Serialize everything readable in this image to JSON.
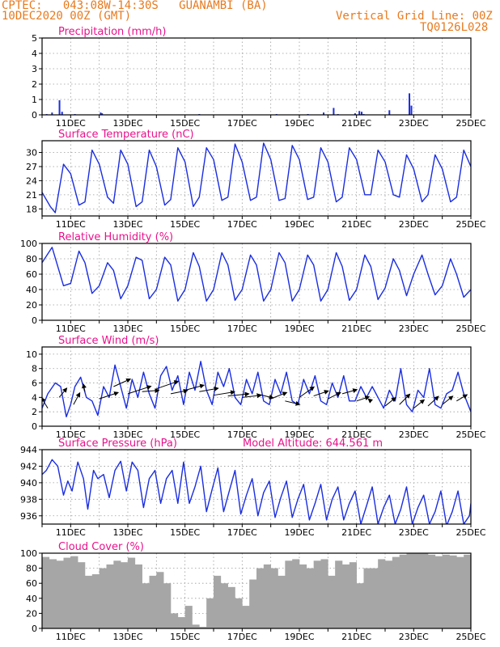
{
  "header": {
    "line1": "CPTEC:   043:08W-14:30S   GUANAMBI (BA)",
    "line2": "10DEC2020 00Z (GMT)",
    "grid_note": "Vertical Grid Line: 00Z",
    "code": "TQ0126L028"
  },
  "colors": {
    "header": "#e87a1e",
    "title": "#e8128c",
    "series": "#1a2de0",
    "cloud": "#a6a6a6",
    "axis": "#000000",
    "grid": "#9a9a9a"
  },
  "chart_data": [
    {
      "type": "bar",
      "title": "Precipitation (mm/h)",
      "x_ticks": [
        "11DEC",
        "13DEC",
        "15DEC",
        "17DEC",
        "19DEC",
        "21DEC",
        "23DEC",
        "25DEC"
      ],
      "xlim_days": [
        10,
        25
      ],
      "ylim": [
        0,
        5
      ],
      "yticks": [
        0,
        1,
        2,
        3,
        4,
        5
      ],
      "grid": true,
      "x": [
        10.16,
        10.35,
        10.61,
        10.7,
        11.15,
        12.05,
        12.1,
        15.5,
        18.2,
        19.3,
        19.85,
        20.2,
        20.35,
        20.95,
        21.1,
        21.18,
        21.25,
        22.15,
        22.85,
        22.92
      ],
      "values": [
        0.05,
        0.15,
        0.95,
        0.2,
        0.05,
        0.15,
        0.1,
        0.05,
        0.05,
        0.05,
        0.15,
        0.45,
        0.05,
        0.1,
        0.25,
        0.2,
        0.05,
        0.3,
        1.4,
        0.6
      ]
    },
    {
      "type": "line",
      "title": "Surface Temperature (nC)",
      "x_ticks": [
        "11DEC",
        "13DEC",
        "15DEC",
        "17DEC",
        "19DEC",
        "21DEC",
        "23DEC",
        "25DEC"
      ],
      "xlim_days": [
        10,
        25
      ],
      "ylim": [
        16.5,
        32.5
      ],
      "yticks": [
        18,
        21,
        24,
        27,
        30
      ],
      "grid": true,
      "x": [
        10.0,
        10.29,
        10.46,
        10.75,
        11.0,
        11.29,
        11.5,
        11.75,
        12.0,
        12.29,
        12.5,
        12.75,
        13.0,
        13.29,
        13.5,
        13.75,
        14.0,
        14.29,
        14.5,
        14.75,
        15.0,
        15.29,
        15.5,
        15.75,
        16.0,
        16.29,
        16.5,
        16.75,
        17.0,
        17.29,
        17.5,
        17.75,
        18.0,
        18.29,
        18.5,
        18.75,
        19.0,
        19.29,
        19.5,
        19.75,
        20.0,
        20.29,
        20.5,
        20.75,
        21.0,
        21.29,
        21.5,
        21.75,
        22.0,
        22.29,
        22.5,
        22.75,
        23.0,
        23.29,
        23.5,
        23.75,
        24.0,
        24.29,
        24.5,
        24.75,
        25.0
      ],
      "values": [
        21.5,
        18.5,
        17.2,
        27.5,
        25.5,
        18.8,
        19.5,
        30.5,
        27.5,
        20.5,
        19.2,
        30.5,
        27.5,
        18.5,
        19.5,
        30.5,
        27.0,
        18.8,
        20.0,
        31.0,
        28.0,
        18.5,
        20.5,
        31.0,
        28.5,
        19.8,
        20.5,
        31.8,
        28.0,
        19.8,
        20.5,
        32.0,
        28.5,
        19.8,
        20.2,
        31.5,
        28.5,
        20.0,
        20.5,
        31.0,
        28.0,
        19.5,
        20.5,
        31.0,
        28.5,
        21.0,
        21.0,
        30.5,
        28.0,
        21.0,
        20.5,
        29.5,
        26.5,
        19.5,
        21.0,
        29.5,
        26.5,
        19.5,
        20.5,
        30.5,
        27.0
      ]
    },
    {
      "type": "line",
      "title": "Relative Humidity (%)",
      "x_ticks": [
        "11DEC",
        "13DEC",
        "15DEC",
        "17DEC",
        "19DEC",
        "21DEC",
        "23DEC",
        "25DEC"
      ],
      "xlim_days": [
        10,
        25
      ],
      "ylim": [
        0,
        100
      ],
      "yticks": [
        0,
        20,
        40,
        60,
        80,
        100
      ],
      "grid": true,
      "x": [
        10.0,
        10.35,
        10.75,
        11.0,
        11.29,
        11.5,
        11.75,
        12.0,
        12.29,
        12.5,
        12.75,
        13.0,
        13.29,
        13.5,
        13.75,
        14.0,
        14.29,
        14.5,
        14.75,
        15.0,
        15.29,
        15.5,
        15.75,
        16.0,
        16.29,
        16.5,
        16.75,
        17.0,
        17.29,
        17.5,
        17.75,
        18.0,
        18.29,
        18.5,
        18.75,
        19.0,
        19.29,
        19.5,
        19.75,
        20.0,
        20.29,
        20.5,
        20.75,
        21.0,
        21.29,
        21.5,
        21.75,
        22.0,
        22.29,
        22.5,
        22.75,
        23.0,
        23.29,
        23.5,
        23.75,
        24.0,
        24.29,
        24.5,
        24.75,
        25.0
      ],
      "values": [
        75,
        95,
        45,
        48,
        90,
        75,
        35,
        45,
        75,
        65,
        28,
        45,
        82,
        78,
        28,
        40,
        82,
        72,
        25,
        40,
        88,
        70,
        25,
        40,
        88,
        72,
        26,
        40,
        85,
        72,
        25,
        40,
        88,
        75,
        25,
        40,
        85,
        72,
        25,
        40,
        88,
        70,
        26,
        40,
        85,
        70,
        27,
        42,
        80,
        65,
        32,
        60,
        85,
        60,
        33,
        45,
        80,
        60,
        30,
        40
      ]
    },
    {
      "type": "line",
      "title": "Surface Wind (m/s)",
      "x_ticks": [
        "11DEC",
        "13DEC",
        "15DEC",
        "17DEC",
        "19DEC",
        "21DEC",
        "23DEC",
        "25DEC"
      ],
      "xlim_days": [
        10,
        25
      ],
      "ylim": [
        0,
        11
      ],
      "yticks": [
        0,
        2,
        4,
        6,
        8,
        10
      ],
      "grid": true,
      "x": [
        10.0,
        10.2,
        10.46,
        10.65,
        10.85,
        11.0,
        11.15,
        11.35,
        11.55,
        11.75,
        11.95,
        12.15,
        12.35,
        12.55,
        12.75,
        12.95,
        13.15,
        13.35,
        13.55,
        13.75,
        13.95,
        14.15,
        14.35,
        14.55,
        14.75,
        14.95,
        15.15,
        15.35,
        15.55,
        15.75,
        15.95,
        16.15,
        16.35,
        16.55,
        16.75,
        16.95,
        17.15,
        17.35,
        17.55,
        17.75,
        17.95,
        18.15,
        18.35,
        18.55,
        18.75,
        18.95,
        19.15,
        19.35,
        19.55,
        19.75,
        19.95,
        20.15,
        20.35,
        20.55,
        20.75,
        20.95,
        21.15,
        21.35,
        21.55,
        21.75,
        21.95,
        22.15,
        22.35,
        22.55,
        22.75,
        22.95,
        23.15,
        23.35,
        23.55,
        23.75,
        23.95,
        24.15,
        24.35,
        24.55,
        24.75,
        25.0
      ],
      "values": [
        2.5,
        4.5,
        6.0,
        5.5,
        1.3,
        3.0,
        5.5,
        6.8,
        4.0,
        3.5,
        1.5,
        5.5,
        4.0,
        8.5,
        5.5,
        2.5,
        6.5,
        4.0,
        7.5,
        4.5,
        2.5,
        7.0,
        8.3,
        5.0,
        7.0,
        3.0,
        7.5,
        5.0,
        9.0,
        5.0,
        3.0,
        7.5,
        5.5,
        8.0,
        4.0,
        3.0,
        6.5,
        4.5,
        7.5,
        3.5,
        3.0,
        6.5,
        4.5,
        7.5,
        3.5,
        3.0,
        6.5,
        4.5,
        7.0,
        3.5,
        3.0,
        6.0,
        4.0,
        7.0,
        3.5,
        3.5,
        5.5,
        4.0,
        5.5,
        4.0,
        2.5,
        5.0,
        3.5,
        8.0,
        3.0,
        2.0,
        5.0,
        4.0,
        8.0,
        3.0,
        2.5,
        4.5,
        5.0,
        7.5,
        4.5,
        2.0
      ],
      "vectors": {
        "x": [
          10.2,
          10.6,
          11.1,
          11.5,
          12.0,
          12.5,
          13.0,
          13.5,
          14.0,
          14.5,
          15.0,
          15.5,
          16.0,
          16.5,
          17.0,
          17.5,
          18.0,
          18.5,
          19.0,
          19.5,
          20.0,
          20.5,
          21.0,
          21.5,
          22.0,
          22.5,
          23.0,
          23.5,
          24.0,
          24.5,
          25.0
        ],
        "y": [
          2.5,
          4.0,
          3.0,
          4.8,
          3.8,
          5.5,
          4.5,
          4.8,
          5.2,
          4.5,
          5.0,
          4.8,
          4.3,
          4.2,
          4.0,
          4.5,
          3.8,
          3.5,
          4.0,
          4.2,
          3.8,
          4.5,
          3.5,
          3.5,
          2.8,
          3.0,
          2.5,
          2.8,
          3.0,
          3.5,
          3.5
        ],
        "u": [
          -1.5,
          1.8,
          1.5,
          -0.4,
          4.5,
          4.0,
          5.5,
          4.0,
          5.2,
          4.0,
          4.5,
          4.5,
          5.0,
          5.0,
          4.5,
          4.0,
          3.8,
          3.5,
          3.5,
          3.5,
          3.0,
          3.5,
          3.0,
          -0.6,
          2.5,
          2.5,
          2.5,
          2.5,
          2.5,
          2.5,
          2.5
        ],
        "v": [
          2.5,
          2.2,
          2.8,
          1.8,
          1.5,
          1.8,
          1.8,
          0.3,
          1.8,
          0.8,
          1.2,
          0.8,
          0.8,
          0.5,
          0.5,
          -1.0,
          1.5,
          -0.8,
          2.5,
          1.2,
          1.5,
          1.0,
          1.0,
          0.5,
          2.0,
          2.5,
          2.0,
          2.3,
          2.0,
          1.5,
          2.0
        ]
      }
    },
    {
      "type": "line",
      "title": "Surface Pressure (hPa)",
      "annotation": "Model Altitude: 644.561 m",
      "x_ticks": [
        "11DEC",
        "13DEC",
        "15DEC",
        "17DEC",
        "19DEC",
        "21DEC",
        "23DEC",
        "25DEC"
      ],
      "xlim_days": [
        10,
        25
      ],
      "ylim": [
        935,
        944
      ],
      "yticks": [
        936,
        938,
        940,
        942,
        944
      ],
      "grid": true,
      "x": [
        10.0,
        10.15,
        10.35,
        10.55,
        10.75,
        10.9,
        11.05,
        11.25,
        11.45,
        11.6,
        11.8,
        11.95,
        12.15,
        12.35,
        12.55,
        12.75,
        12.95,
        13.15,
        13.35,
        13.55,
        13.75,
        13.95,
        14.15,
        14.35,
        14.55,
        14.75,
        14.95,
        15.15,
        15.35,
        15.55,
        15.75,
        15.95,
        16.15,
        16.35,
        16.55,
        16.75,
        16.95,
        17.15,
        17.35,
        17.55,
        17.75,
        17.95,
        18.15,
        18.35,
        18.55,
        18.75,
        18.95,
        19.15,
        19.35,
        19.55,
        19.75,
        19.95,
        20.15,
        20.35,
        20.55,
        20.75,
        20.95,
        21.15,
        21.35,
        21.55,
        21.75,
        21.95,
        22.15,
        22.35,
        22.55,
        22.75,
        22.95,
        23.15,
        23.35,
        23.55,
        23.75,
        23.95,
        24.15,
        24.35,
        24.55,
        24.75,
        24.95,
        25.0
      ],
      "values": [
        941.0,
        941.5,
        942.8,
        942.0,
        938.5,
        940.2,
        939.0,
        942.5,
        940.5,
        936.8,
        941.5,
        940.5,
        941.0,
        938.2,
        941.5,
        942.6,
        939.0,
        942.5,
        941.5,
        937.0,
        940.5,
        941.5,
        937.5,
        940.5,
        941.5,
        937.5,
        942.5,
        937.5,
        939.5,
        942.0,
        936.5,
        939.2,
        941.8,
        936.5,
        939.0,
        941.5,
        936.2,
        938.5,
        940.5,
        936.0,
        938.8,
        940.2,
        935.8,
        938.2,
        940.2,
        935.8,
        938.0,
        939.8,
        935.5,
        937.5,
        939.8,
        935.5,
        938.0,
        939.5,
        935.5,
        937.5,
        939.0,
        935.0,
        937.2,
        939.5,
        935.0,
        937.0,
        938.5,
        935.0,
        936.8,
        939.5,
        935.0,
        937.0,
        938.5,
        935.0,
        936.5,
        939.0,
        934.8,
        936.5,
        939.0,
        935.0,
        936.0,
        937.5
      ]
    },
    {
      "type": "bar",
      "title": "Cloud Cover (%)",
      "x_ticks": [
        "11DEC",
        "13DEC",
        "15DEC",
        "17DEC",
        "19DEC",
        "21DEC",
        "23DEC",
        "25DEC"
      ],
      "xlim_days": [
        10,
        25
      ],
      "ylim": [
        0,
        100
      ],
      "yticks": [
        0,
        20,
        40,
        60,
        80,
        100
      ],
      "grid": true,
      "x": [
        10.0,
        10.25,
        10.5,
        10.75,
        11.0,
        11.25,
        11.5,
        11.75,
        12.0,
        12.25,
        12.5,
        12.75,
        13.0,
        13.25,
        13.5,
        13.75,
        14.0,
        14.25,
        14.5,
        14.75,
        15.0,
        15.25,
        15.5,
        15.75,
        16.0,
        16.25,
        16.5,
        16.75,
        17.0,
        17.25,
        17.5,
        17.75,
        18.0,
        18.25,
        18.5,
        18.75,
        19.0,
        19.25,
        19.5,
        19.75,
        20.0,
        20.25,
        20.5,
        20.75,
        21.0,
        21.25,
        21.5,
        21.75,
        22.0,
        22.25,
        22.5,
        22.75,
        23.0,
        23.25,
        23.5,
        23.75,
        24.0,
        24.25,
        24.5,
        24.75
      ],
      "values": [
        95,
        92,
        90,
        94,
        96,
        88,
        70,
        72,
        80,
        85,
        90,
        88,
        94,
        85,
        60,
        70,
        75,
        60,
        20,
        15,
        30,
        5,
        2,
        40,
        70,
        60,
        55,
        40,
        30,
        65,
        80,
        85,
        80,
        70,
        90,
        92,
        85,
        80,
        90,
        92,
        70,
        90,
        85,
        88,
        60,
        80,
        80,
        92,
        90,
        95,
        98,
        100,
        100,
        100,
        98,
        96,
        98,
        97,
        95,
        98
      ]
    }
  ]
}
